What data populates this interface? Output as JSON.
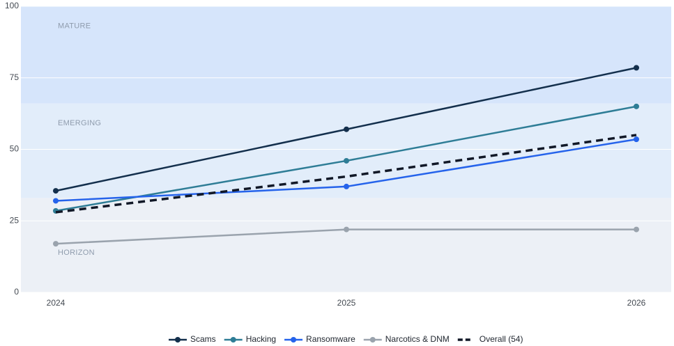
{
  "chart_data": {
    "type": "line",
    "x": [
      "2024",
      "2025",
      "2026"
    ],
    "ylim": [
      0,
      100
    ],
    "y_ticks": [
      0,
      25,
      50,
      75,
      100
    ],
    "grid": true,
    "legend_position": "bottom-center",
    "bands": [
      {
        "label": "MATURE",
        "from": 66,
        "to": 100,
        "color": "#d6e5fb"
      },
      {
        "label": "EMERGING",
        "from": 33,
        "to": 66,
        "color": "#e2edfa"
      },
      {
        "label": "HORIZON",
        "from": 0,
        "to": 33,
        "color": "#ecf0f6"
      }
    ],
    "series": [
      {
        "name": "Scams",
        "values": [
          35.5,
          57,
          78.5
        ],
        "color": "#132f4c",
        "dashed": false
      },
      {
        "name": "Hacking",
        "values": [
          28.5,
          46,
          65
        ],
        "color": "#2e7d96",
        "dashed": false
      },
      {
        "name": "Ransomware",
        "values": [
          32,
          37,
          53.5
        ],
        "color": "#2563eb",
        "dashed": false
      },
      {
        "name": "Narcotics & DNM",
        "values": [
          17,
          22,
          22
        ],
        "color": "#9aa3ad",
        "dashed": false
      },
      {
        "name": "Overall (54)",
        "values": [
          28,
          40.5,
          55
        ],
        "color": "#111827",
        "dashed": true
      }
    ]
  }
}
